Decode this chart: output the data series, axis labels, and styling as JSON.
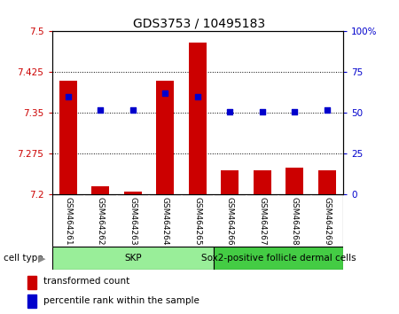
{
  "title": "GDS3753 / 10495183",
  "samples": [
    "GSM464261",
    "GSM464262",
    "GSM464263",
    "GSM464264",
    "GSM464265",
    "GSM464266",
    "GSM464267",
    "GSM464268",
    "GSM464269"
  ],
  "transformed_counts": [
    7.41,
    7.215,
    7.205,
    7.41,
    7.48,
    7.245,
    7.245,
    7.25,
    7.245
  ],
  "percentile_ranks": [
    60,
    52,
    52,
    62,
    60,
    51,
    51,
    51,
    52
  ],
  "ylim_left": [
    7.2,
    7.5
  ],
  "ylim_right": [
    0,
    100
  ],
  "yticks_left": [
    7.2,
    7.275,
    7.35,
    7.425,
    7.5
  ],
  "ytick_labels_left": [
    "7.2",
    "7.275",
    "7.35",
    "7.425",
    "7.5"
  ],
  "yticks_right": [
    0,
    25,
    50,
    75,
    100
  ],
  "ytick_labels_right": [
    "0",
    "25",
    "50",
    "75",
    "100%"
  ],
  "hlines": [
    7.275,
    7.35,
    7.425
  ],
  "bar_color": "#cc0000",
  "dot_color": "#0000cc",
  "bar_bottom": 7.2,
  "cell_groups": [
    {
      "label": "SKP",
      "start": 0,
      "end": 4,
      "color": "#99ee99"
    },
    {
      "label": "Sox2-positive follicle dermal cells",
      "start": 5,
      "end": 8,
      "color": "#44cc44"
    }
  ],
  "cell_type_label": "cell type",
  "legend_items": [
    {
      "color": "#cc0000",
      "label": "transformed count"
    },
    {
      "color": "#0000cc",
      "label": "percentile rank within the sample"
    }
  ],
  "left_color": "#cc0000",
  "right_color": "#0000cc",
  "sample_bg_color": "#cccccc",
  "sample_sep_color": "#ffffff"
}
